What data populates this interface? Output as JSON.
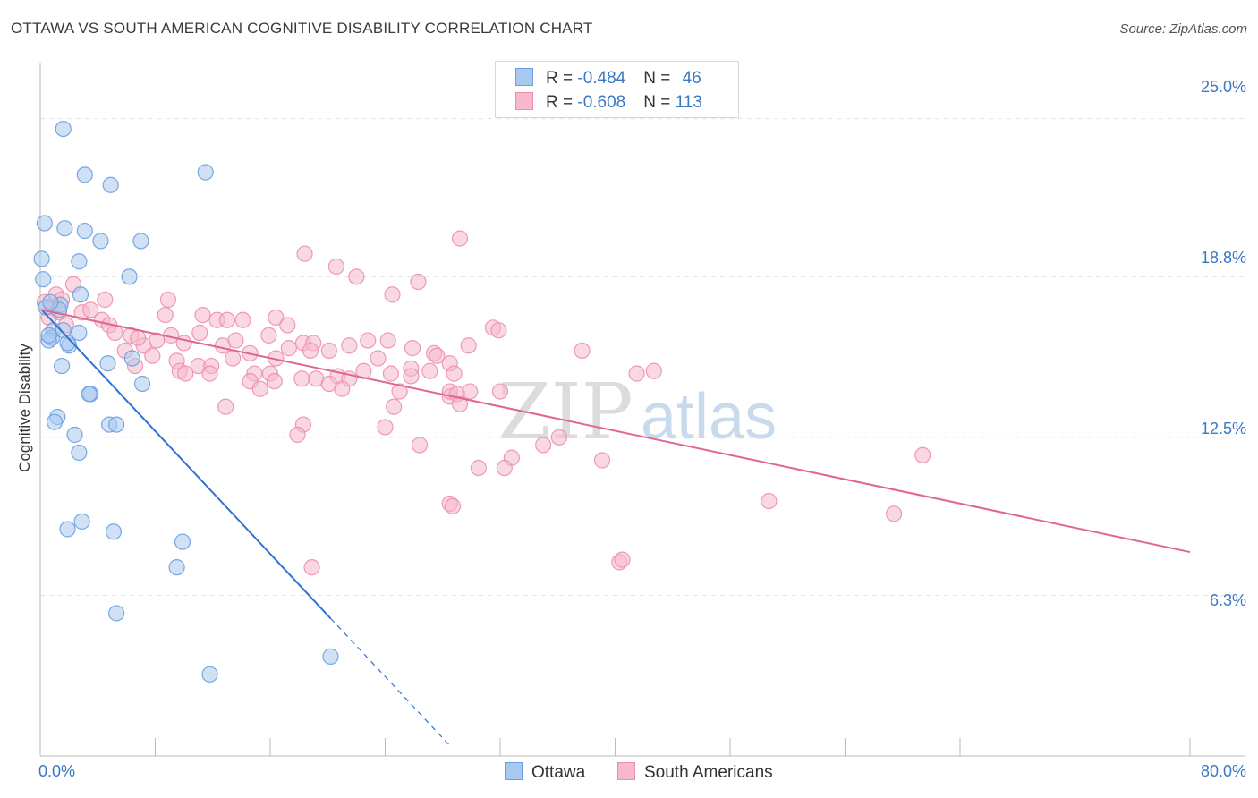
{
  "title": "OTTAWA VS SOUTH AMERICAN COGNITIVE DISABILITY CORRELATION CHART",
  "source": "Source: ZipAtlas.com",
  "legend": {
    "ottawa": {
      "r_label": "R = ",
      "r_value": "-0.484",
      "n_label": "N = ",
      "n_value": "46"
    },
    "south_americans": {
      "r_label": "R = ",
      "r_value": "-0.608",
      "n_label": "N = ",
      "n_value": "113"
    }
  },
  "bottom_legend": {
    "ottawa": "Ottawa",
    "south_americans": "South Americans"
  },
  "watermark": {
    "zip": "ZIP",
    "atlas": "atlas"
  },
  "colors": {
    "ottawa_fill": "#a9c8ef",
    "ottawa_stroke": "#6a9fe0",
    "ottawa_line": "#2f72d4",
    "sa_fill": "#f6b8cb",
    "sa_stroke": "#ec8fae",
    "sa_line": "#e0668f",
    "grid": "#e3e3e3",
    "tick_text": "#3a78c4"
  },
  "chart_data": {
    "type": "scatter",
    "title": "OTTAWA VS SOUTH AMERICAN COGNITIVE DISABILITY CORRELATION CHART",
    "xlabel": "",
    "ylabel": "Cognitive Disability",
    "xlim": [
      0,
      80
    ],
    "ylim": [
      0,
      27.2
    ],
    "x_tick_labels": [
      "0.0%",
      "80.0%"
    ],
    "y_ticks": [
      {
        "value": 25.0,
        "label": "25.0%"
      },
      {
        "value": 18.8,
        "label": "18.8%"
      },
      {
        "value": 12.5,
        "label": "12.5%"
      },
      {
        "value": 6.3,
        "label": "6.3%"
      }
    ],
    "series": [
      {
        "name": "Ottawa",
        "r": -0.484,
        "n": 46,
        "trend": {
          "x0": 0.1,
          "y0": 17.5,
          "x1": 20.2,
          "y1": 5.4,
          "dash_to_x": 28.5
        },
        "points": [
          [
            1.6,
            24.6
          ],
          [
            3.1,
            22.8
          ],
          [
            4.9,
            22.4
          ],
          [
            11.5,
            22.9
          ],
          [
            0.3,
            20.9
          ],
          [
            1.7,
            20.7
          ],
          [
            3.1,
            20.6
          ],
          [
            4.2,
            20.2
          ],
          [
            7.0,
            20.2
          ],
          [
            0.1,
            19.5
          ],
          [
            2.7,
            19.4
          ],
          [
            6.2,
            18.8
          ],
          [
            0.2,
            18.7
          ],
          [
            2.8,
            18.1
          ],
          [
            1.4,
            17.7
          ],
          [
            0.4,
            17.6
          ],
          [
            1.3,
            17.5
          ],
          [
            0.7,
            17.8
          ],
          [
            0.9,
            16.7
          ],
          [
            2.7,
            16.6
          ],
          [
            0.8,
            16.4
          ],
          [
            0.6,
            16.3
          ],
          [
            1.6,
            16.7
          ],
          [
            2.0,
            16.1
          ],
          [
            0.6,
            16.5
          ],
          [
            1.9,
            16.2
          ],
          [
            6.4,
            15.6
          ],
          [
            4.7,
            15.4
          ],
          [
            1.5,
            15.3
          ],
          [
            7.1,
            14.6
          ],
          [
            3.5,
            14.2
          ],
          [
            3.4,
            14.2
          ],
          [
            1.2,
            13.3
          ],
          [
            1.0,
            13.1
          ],
          [
            4.8,
            13.0
          ],
          [
            5.3,
            13.0
          ],
          [
            2.4,
            12.6
          ],
          [
            2.7,
            11.9
          ],
          [
            2.9,
            9.2
          ],
          [
            1.9,
            8.9
          ],
          [
            5.1,
            8.8
          ],
          [
            9.9,
            8.4
          ],
          [
            9.5,
            7.4
          ],
          [
            5.3,
            5.6
          ],
          [
            11.8,
            3.2
          ],
          [
            20.2,
            3.9
          ]
        ]
      },
      {
        "name": "South Americans",
        "r": -0.608,
        "n": 113,
        "trend": {
          "x0": 0.1,
          "y0": 17.5,
          "x1": 80.0,
          "y1": 8.0
        },
        "points": [
          [
            0.3,
            17.8
          ],
          [
            0.8,
            17.6
          ],
          [
            1.3,
            17.4
          ],
          [
            0.6,
            17.2
          ],
          [
            1.8,
            16.9
          ],
          [
            1.1,
            18.1
          ],
          [
            2.3,
            18.5
          ],
          [
            1.5,
            17.9
          ],
          [
            2.9,
            17.4
          ],
          [
            3.5,
            17.5
          ],
          [
            4.3,
            17.1
          ],
          [
            4.8,
            16.9
          ],
          [
            4.5,
            17.9
          ],
          [
            8.7,
            17.3
          ],
          [
            8.9,
            17.9
          ],
          [
            11.3,
            17.3
          ],
          [
            12.3,
            17.1
          ],
          [
            13.0,
            17.1
          ],
          [
            14.1,
            17.1
          ],
          [
            16.4,
            17.2
          ],
          [
            17.2,
            16.9
          ],
          [
            5.2,
            16.6
          ],
          [
            6.3,
            16.5
          ],
          [
            7.2,
            16.1
          ],
          [
            6.8,
            16.4
          ],
          [
            8.1,
            16.3
          ],
          [
            9.1,
            16.5
          ],
          [
            10.0,
            16.2
          ],
          [
            11.1,
            16.6
          ],
          [
            12.7,
            16.1
          ],
          [
            13.6,
            16.3
          ],
          [
            15.9,
            16.5
          ],
          [
            18.3,
            16.2
          ],
          [
            19.0,
            16.2
          ],
          [
            21.5,
            16.1
          ],
          [
            22.8,
            16.3
          ],
          [
            24.2,
            16.3
          ],
          [
            25.9,
            16.0
          ],
          [
            27.4,
            15.8
          ],
          [
            29.8,
            16.1
          ],
          [
            31.5,
            16.8
          ],
          [
            5.9,
            15.9
          ],
          [
            6.6,
            15.3
          ],
          [
            7.8,
            15.7
          ],
          [
            9.5,
            15.5
          ],
          [
            11.0,
            15.3
          ],
          [
            11.9,
            15.3
          ],
          [
            13.4,
            15.6
          ],
          [
            14.6,
            15.8
          ],
          [
            16.4,
            15.6
          ],
          [
            17.3,
            16.0
          ],
          [
            18.8,
            15.9
          ],
          [
            20.1,
            15.9
          ],
          [
            23.5,
            15.6
          ],
          [
            25.8,
            15.2
          ],
          [
            27.6,
            15.7
          ],
          [
            28.5,
            15.4
          ],
          [
            9.7,
            15.1
          ],
          [
            10.1,
            15.0
          ],
          [
            11.8,
            15.0
          ],
          [
            14.9,
            15.0
          ],
          [
            16.0,
            15.0
          ],
          [
            18.2,
            14.8
          ],
          [
            20.7,
            14.9
          ],
          [
            21.5,
            14.8
          ],
          [
            22.5,
            15.1
          ],
          [
            24.4,
            15.0
          ],
          [
            25.8,
            14.9
          ],
          [
            27.1,
            15.1
          ],
          [
            28.8,
            15.0
          ],
          [
            14.6,
            14.7
          ],
          [
            16.3,
            14.7
          ],
          [
            19.2,
            14.8
          ],
          [
            20.1,
            14.6
          ],
          [
            21.0,
            14.4
          ],
          [
            25.0,
            14.3
          ],
          [
            28.5,
            14.1
          ],
          [
            28.5,
            14.3
          ],
          [
            29.0,
            14.2
          ],
          [
            29.9,
            14.3
          ],
          [
            32.0,
            14.3
          ],
          [
            15.3,
            14.4
          ],
          [
            24.6,
            13.7
          ],
          [
            29.2,
            13.8
          ],
          [
            12.9,
            13.7
          ],
          [
            18.3,
            13.0
          ],
          [
            24.0,
            12.9
          ],
          [
            17.9,
            12.6
          ],
          [
            26.4,
            12.2
          ],
          [
            35.0,
            12.2
          ],
          [
            36.1,
            12.5
          ],
          [
            32.8,
            11.7
          ],
          [
            32.3,
            11.3
          ],
          [
            30.5,
            11.3
          ],
          [
            39.1,
            11.6
          ],
          [
            61.4,
            11.8
          ],
          [
            28.5,
            9.9
          ],
          [
            28.7,
            9.8
          ],
          [
            50.7,
            10.0
          ],
          [
            59.4,
            9.5
          ],
          [
            40.3,
            7.6
          ],
          [
            40.5,
            7.7
          ],
          [
            18.9,
            7.4
          ],
          [
            37.7,
            15.9
          ],
          [
            41.5,
            15.0
          ],
          [
            42.7,
            15.1
          ],
          [
            31.9,
            16.7
          ],
          [
            18.4,
            19.7
          ],
          [
            20.6,
            19.2
          ],
          [
            22.0,
            18.8
          ],
          [
            26.3,
            18.6
          ],
          [
            24.5,
            18.1
          ],
          [
            29.2,
            20.3
          ]
        ]
      }
    ]
  }
}
